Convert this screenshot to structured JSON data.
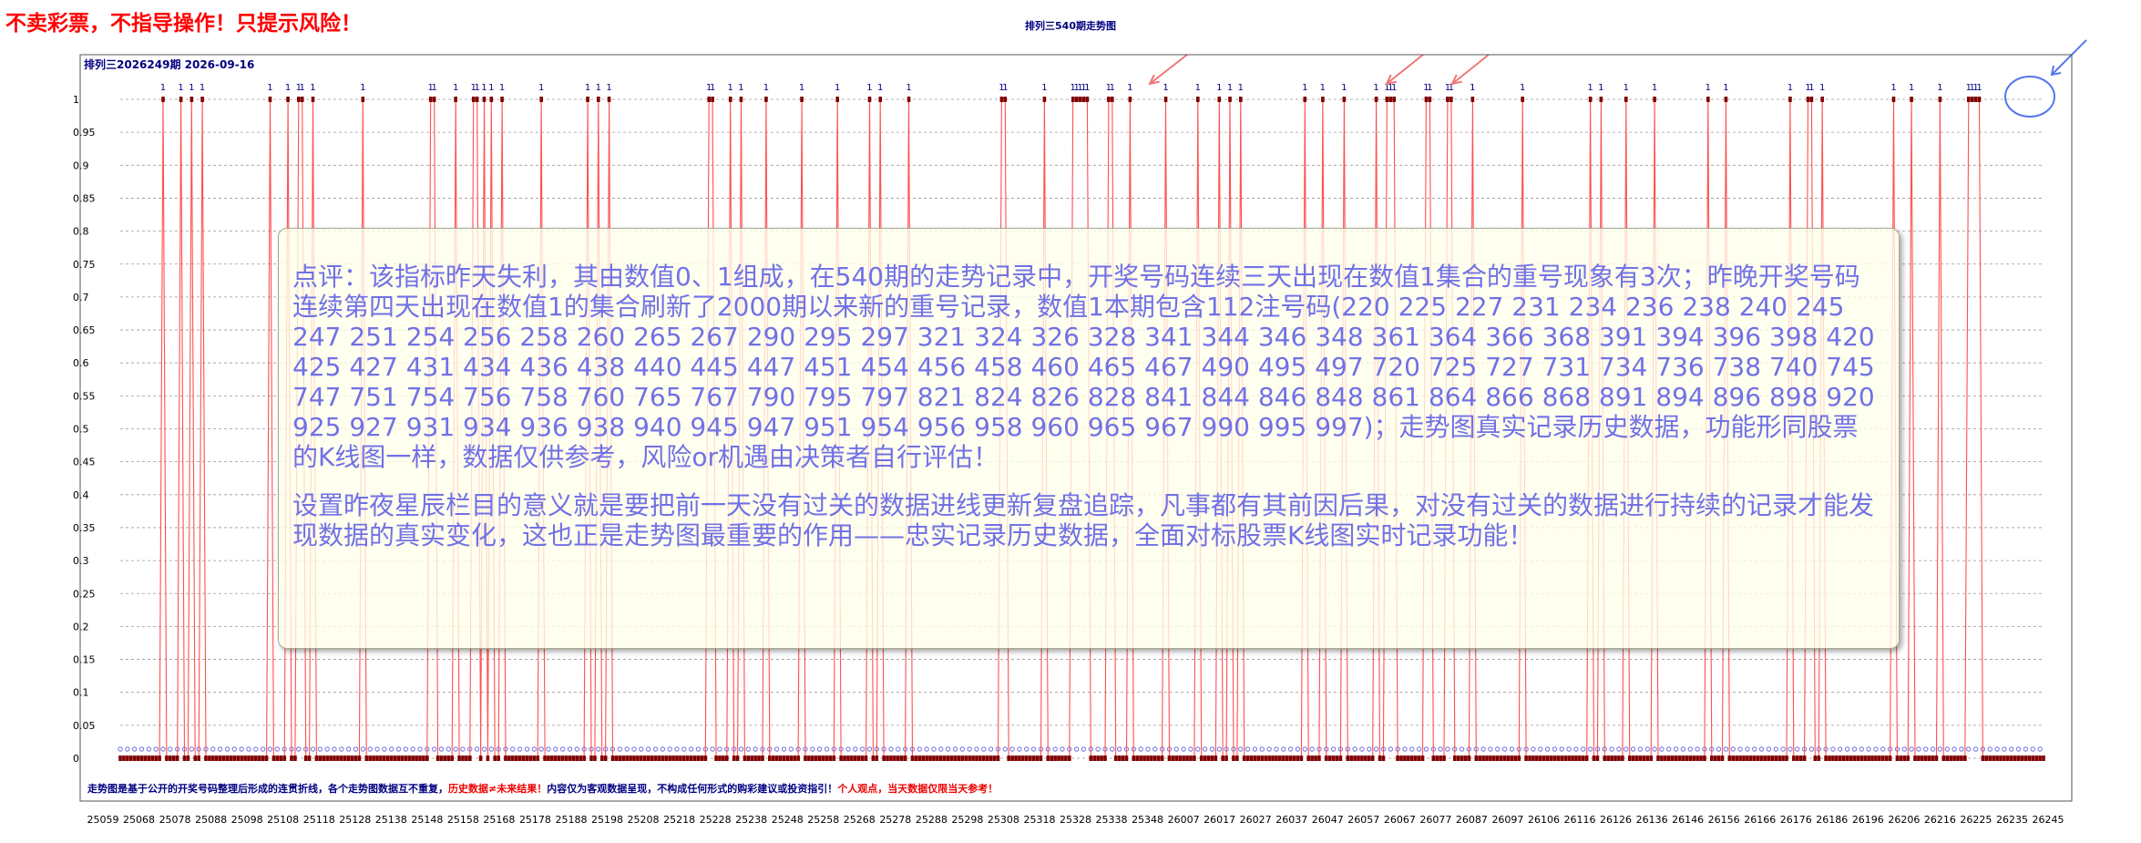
{
  "banner": "不卖彩票，不指导操作！只提示风险！",
  "chart_data": {
    "type": "line",
    "title": "排列三540期走势图",
    "period_label": "排列三2026249期  2026-09-16",
    "y_ticks": [
      "0",
      "0.05",
      "0.1",
      "0.15",
      "0.2",
      "0.25",
      "0.3",
      "0.35",
      "0.4",
      "0.45",
      "0.5",
      "0.55",
      "0.6",
      "0.65",
      "0.7",
      "0.75",
      "0.8",
      "0.85",
      "0.9",
      "0.95",
      "1"
    ],
    "ylim": [
      0,
      1
    ],
    "x_ticks": [
      "25059",
      "25068",
      "25078",
      "25088",
      "25098",
      "25108",
      "25118",
      "25128",
      "25138",
      "25148",
      "25158",
      "25168",
      "25178",
      "25188",
      "25198",
      "25208",
      "25218",
      "25228",
      "25238",
      "25248",
      "25258",
      "25268",
      "25278",
      "25288",
      "25298",
      "25308",
      "25318",
      "25328",
      "25338",
      "25348",
      "26007",
      "26017",
      "26027",
      "26037",
      "26047",
      "26057",
      "26067",
      "26077",
      "26087",
      "26097",
      "26106",
      "26116",
      "26126",
      "26136",
      "26146",
      "26156",
      "26166",
      "26176",
      "26186",
      "26196",
      "26206",
      "26216",
      "26225",
      "26235",
      "26245"
    ],
    "series": [
      {
        "values_note": "",
        "count": 540,
        "ones_at_index": [
          12,
          17,
          20,
          23,
          42,
          47,
          50,
          51,
          54,
          68,
          87,
          88,
          94,
          99,
          100,
          102,
          104,
          107,
          118,
          131,
          134,
          137,
          165,
          166,
          171,
          174,
          181,
          191,
          201,
          210,
          213,
          221,
          247,
          248,
          259,
          267,
          268,
          269,
          270,
          271,
          277,
          278,
          283,
          293,
          302,
          308,
          311,
          314,
          332,
          337,
          343,
          352,
          355,
          356,
          357,
          366,
          367,
          372,
          373,
          379,
          393,
          412,
          415,
          422,
          430,
          445,
          450,
          468,
          473,
          474,
          477,
          497,
          502,
          510,
          518,
          519,
          520,
          521
        ],
        "point_labels_shown": "1"
      }
    ],
    "grid": true,
    "footer": {
      "part1": "走势图是基于公开的开奖号码整理后形成的连贯折线，各个走势图数据互不重复，",
      "part2": "历史数据≠未来结果！",
      "part3": "内容仅为客观数据呈现，不构成任何形式的购彩建议或投资指引！",
      "part4": "个人观点，当天数据仅限当天参考！"
    }
  },
  "annotation": {
    "paragraph1": "点评：该指标昨天失利，其由数值0、1组成，在540期的走势记录中，开奖号码连续三天出现在数值1集合的重号现象有3次；昨晚开奖号码连续第四天出现在数值1的集合刷新了2000期以来新的重号记录，数值1本期包含112注号码(220 225 227 231 234 236 238 240 245 247 251 254 256 258 260 265 267 290 295 297 321 324 326 328 341 344 346 348 361 364 366 368 391 394 396 398 420 425 427 431 434 436 438 440 445 447 451 454 456 458 460 465 467 490 495 497 720 725 727 731 734 736 738 740 745 747 751 754 756 758 760 765 767 790 795 797 821 824 826 828 841 844 846 848 861 864 866 868 891 894 896 898 920 925 927 931 934 936 938 940 945 947 951 954 956 958 960 965 967 990 995 997)；走势图真实记录历史数据，功能形同股票的K线图一样，数据仅供参考，风险or机遇由决策者自行评估！",
    "paragraph2": "设置昨夜星辰栏目的意义就是要把前一天没有过关的数据进线更新复盘追踪，凡事都有其前因后果，对没有过关的数据进行持续的记录才能发现数据的真实变化，这也正是走势图最重要的作用——忠实记录历史数据，全面对标股票K线图实时记录功能！"
  },
  "colors": {
    "banner": "#ff0000",
    "title": "#000080",
    "line": "#ff5050",
    "marker": "#800000",
    "baseline_dots": "#5555dd",
    "annotation_text": "#7171e6",
    "arrow": "#ee7777",
    "circle": "#5577ee"
  }
}
